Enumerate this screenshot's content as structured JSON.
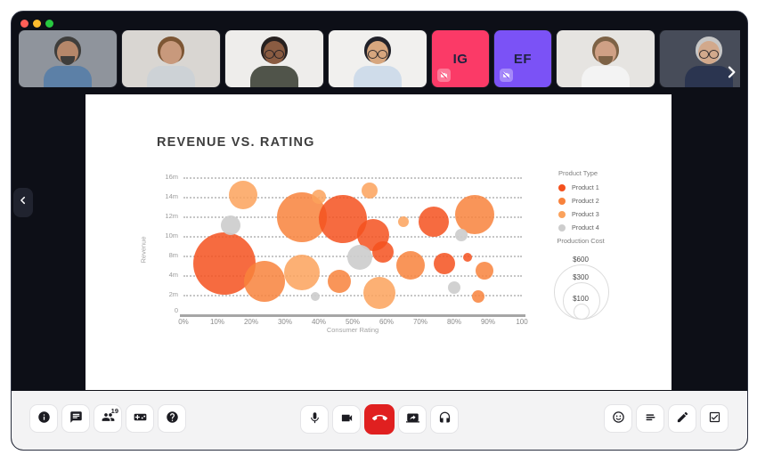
{
  "window": {
    "participants_badge": "19",
    "traffic_lights": [
      "#ff5f57",
      "#febc2e",
      "#28c840"
    ],
    "hangup_color": "#e02020"
  },
  "participants": [
    {
      "kind": "photo",
      "bg": "#8f949c",
      "skin": "#b5876a",
      "hair": "#3f3e3c",
      "shirt": "#5c80a7",
      "beard": true,
      "glasses": false
    },
    {
      "kind": "photo",
      "bg": "#d9d6d2",
      "skin": "#c8997c",
      "hair": "#7d5634",
      "shirt": "#cdd2d6",
      "beard": false,
      "glasses": false
    },
    {
      "kind": "photo",
      "bg": "#eeedeb",
      "skin": "#8a5c42",
      "hair": "#272120",
      "shirt": "#50544a",
      "beard": false,
      "glasses": true
    },
    {
      "kind": "photo",
      "bg": "#f1f0ee",
      "skin": "#d7a67e",
      "hair": "#22222a",
      "shirt": "#cfdcea",
      "beard": false,
      "glasses": true
    },
    {
      "kind": "initials",
      "initials": "IG",
      "bg": "#fb3a67",
      "muted_video": true
    },
    {
      "kind": "initials",
      "initials": "EF",
      "bg": "#7b52f6",
      "muted_video": true
    },
    {
      "kind": "photo",
      "bg": "#e6e4e1",
      "skin": "#cfa085",
      "hair": "#7d6246",
      "shirt": "#f3f3f3",
      "beard": true,
      "glasses": false
    },
    {
      "kind": "photo",
      "bg": "#474c59",
      "skin": "#d2a98c",
      "hair": "#c6c6c6",
      "shirt": "#2b3550",
      "beard": false,
      "glasses": true
    }
  ],
  "chart_data": {
    "type": "bubble",
    "title": "REVENUE VS. RATING",
    "xlabel": "Consumer Rating",
    "ylabel": "Revenue",
    "x_ticks": [
      "0%",
      "10%",
      "20%",
      "30%",
      "40%",
      "50%",
      "60%",
      "70%",
      "80%",
      "90%",
      "100"
    ],
    "y_ticks": [
      "16m",
      "14m",
      "12m",
      "10m",
      "8m",
      "4m",
      "2m"
    ],
    "y_baseline_label": "0",
    "y_scale_stops": [
      0,
      2,
      4,
      8,
      10,
      12,
      14,
      16
    ],
    "x_range": [
      0,
      100
    ],
    "grid": "dotted-horizontal",
    "palette": {
      "1": "#f4511e",
      "2": "#f8823c",
      "3": "#fba25c",
      "4": "#cdcdcd"
    },
    "legend": {
      "title": "Product Type",
      "items": [
        {
          "label": "Product 1",
          "p": "1"
        },
        {
          "label": "Product 2",
          "p": "2"
        },
        {
          "label": "Product 3",
          "p": "3"
        },
        {
          "label": "Product 4",
          "p": "4"
        }
      ]
    },
    "size_legend": {
      "title": "Production Cost",
      "items": [
        {
          "label": "$600",
          "r": 30
        },
        {
          "label": "$300",
          "r": 20
        },
        {
          "label": "$100",
          "r": 8
        }
      ]
    },
    "bubbles": [
      {
        "x": 12,
        "y": 6.4,
        "r": 35,
        "p": "1"
      },
      {
        "x": 17.5,
        "y": 14.2,
        "r": 16,
        "p": "3"
      },
      {
        "x": 14,
        "y": 11.1,
        "r": 11,
        "p": "4"
      },
      {
        "x": 24,
        "y": 3.4,
        "r": 23,
        "p": "2"
      },
      {
        "x": 35,
        "y": 11.9,
        "r": 28,
        "p": "2"
      },
      {
        "x": 40,
        "y": 14,
        "r": 8,
        "p": "3"
      },
      {
        "x": 47,
        "y": 11.7,
        "r": 27,
        "p": "1"
      },
      {
        "x": 35,
        "y": 4.6,
        "r": 20,
        "p": "3"
      },
      {
        "x": 46,
        "y": 3.4,
        "r": 13,
        "p": "2"
      },
      {
        "x": 39,
        "y": 1.8,
        "r": 5,
        "p": "4"
      },
      {
        "x": 56,
        "y": 10.1,
        "r": 18,
        "p": "1"
      },
      {
        "x": 52,
        "y": 7.6,
        "r": 14,
        "p": "4"
      },
      {
        "x": 59,
        "y": 8.4,
        "r": 12,
        "p": "1"
      },
      {
        "x": 58,
        "y": 2.2,
        "r": 18,
        "p": "3"
      },
      {
        "x": 55,
        "y": 14.6,
        "r": 9,
        "p": "3"
      },
      {
        "x": 67,
        "y": 6,
        "r": 16,
        "p": "2"
      },
      {
        "x": 65,
        "y": 11.5,
        "r": 6,
        "p": "3"
      },
      {
        "x": 74,
        "y": 11.5,
        "r": 17,
        "p": "1"
      },
      {
        "x": 77,
        "y": 6.4,
        "r": 12,
        "p": "1"
      },
      {
        "x": 84,
        "y": 7.6,
        "r": 5,
        "p": "1"
      },
      {
        "x": 82,
        "y": 10.1,
        "r": 7,
        "p": "4"
      },
      {
        "x": 86,
        "y": 12.2,
        "r": 22,
        "p": "2"
      },
      {
        "x": 89,
        "y": 5,
        "r": 10,
        "p": "2"
      },
      {
        "x": 80,
        "y": 2.7,
        "r": 7,
        "p": "4"
      },
      {
        "x": 87,
        "y": 1.8,
        "r": 7,
        "p": "2"
      }
    ]
  },
  "icons": [
    "info-icon",
    "chat-icon",
    "participants-icon",
    "activities-icon",
    "help-icon",
    "mic-icon",
    "camera-icon",
    "hangup-icon",
    "screenshare-icon",
    "headset-icon",
    "reactions-icon",
    "notes-icon",
    "edit-icon",
    "tasks-icon",
    "camera-off-icon",
    "chevron-left-icon",
    "chevron-right-icon"
  ]
}
